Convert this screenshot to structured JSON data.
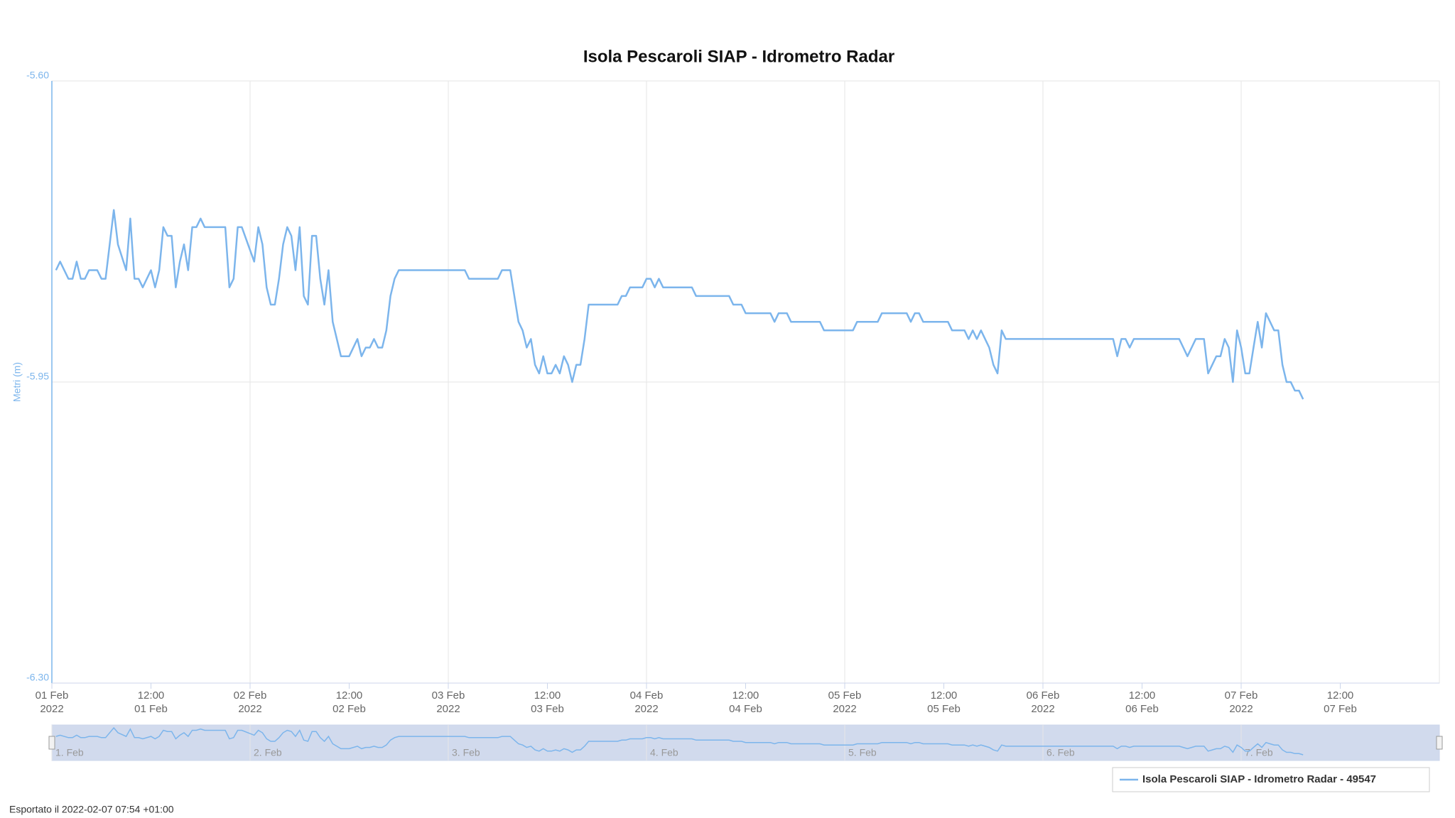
{
  "chart_data": {
    "type": "line",
    "title": "Isola Pescaroli SIAP - Idrometro Radar",
    "y_label": "Metri (m)",
    "footer": "Esportato il 2022-02-07 07:54 +01:00",
    "ylim": [
      -6.3,
      -5.6
    ],
    "yticks": [
      {
        "value": -5.6,
        "label": "-5.60"
      },
      {
        "value": -5.95,
        "label": "-5.95"
      },
      {
        "value": -6.3,
        "label": "-6.30"
      }
    ],
    "xlim": [
      "2022-02-01T00:00",
      "2022-02-08T00:00"
    ],
    "xticks": [
      {
        "value": "2022-02-01T00:00",
        "label": [
          "01 Feb",
          "2022"
        ]
      },
      {
        "value": "2022-02-01T12:00",
        "label": [
          "12:00",
          "01 Feb"
        ]
      },
      {
        "value": "2022-02-02T00:00",
        "label": [
          "02 Feb",
          "2022"
        ]
      },
      {
        "value": "2022-02-02T12:00",
        "label": [
          "12:00",
          "02 Feb"
        ]
      },
      {
        "value": "2022-02-03T00:00",
        "label": [
          "03 Feb",
          "2022"
        ]
      },
      {
        "value": "2022-02-03T12:00",
        "label": [
          "12:00",
          "03 Feb"
        ]
      },
      {
        "value": "2022-02-04T00:00",
        "label": [
          "04 Feb",
          "2022"
        ]
      },
      {
        "value": "2022-02-04T12:00",
        "label": [
          "12:00",
          "04 Feb"
        ]
      },
      {
        "value": "2022-02-05T00:00",
        "label": [
          "05 Feb",
          "2022"
        ]
      },
      {
        "value": "2022-02-05T12:00",
        "label": [
          "12:00",
          "05 Feb"
        ]
      },
      {
        "value": "2022-02-06T00:00",
        "label": [
          "06 Feb",
          "2022"
        ]
      },
      {
        "value": "2022-02-06T12:00",
        "label": [
          "12:00",
          "06 Feb"
        ]
      },
      {
        "value": "2022-02-07T00:00",
        "label": [
          "07 Feb",
          "2022"
        ]
      },
      {
        "value": "2022-02-07T12:00",
        "label": [
          "12:00",
          "07 Feb"
        ]
      }
    ],
    "navigator_xticks": [
      {
        "value": "2022-02-01T00:00",
        "label": "1. Feb"
      },
      {
        "value": "2022-02-02T00:00",
        "label": "2. Feb"
      },
      {
        "value": "2022-02-03T00:00",
        "label": "3. Feb"
      },
      {
        "value": "2022-02-04T00:00",
        "label": "4. Feb"
      },
      {
        "value": "2022-02-05T00:00",
        "label": "5. Feb"
      },
      {
        "value": "2022-02-06T00:00",
        "label": "6. Feb"
      },
      {
        "value": "2022-02-07T00:00",
        "label": "7. Feb"
      }
    ],
    "grid": true,
    "x": [
      "2022-02-01T00:30",
      "2022-02-01T01:00",
      "2022-02-01T02:00",
      "2022-02-01T02:30",
      "2022-02-01T03:00",
      "2022-02-01T03:30",
      "2022-02-01T04:00",
      "2022-02-01T04:30",
      "2022-02-01T05:30",
      "2022-02-01T06:00",
      "2022-02-01T06:30",
      "2022-02-01T07:30",
      "2022-02-01T08:00",
      "2022-02-01T09:00",
      "2022-02-01T09:30",
      "2022-02-01T10:00",
      "2022-02-01T10:30",
      "2022-02-01T11:00",
      "2022-02-01T12:00",
      "2022-02-01T12:30",
      "2022-02-01T13:00",
      "2022-02-01T13:30",
      "2022-02-01T14:00",
      "2022-02-01T14:30",
      "2022-02-01T15:00",
      "2022-02-01T15:30",
      "2022-02-01T16:00",
      "2022-02-01T16:30",
      "2022-02-01T17:00",
      "2022-02-01T17:30",
      "2022-02-01T18:00",
      "2022-02-01T18:30",
      "2022-02-01T21:00",
      "2022-02-01T21:30",
      "2022-02-01T22:00",
      "2022-02-01T22:30",
      "2022-02-01T23:00",
      "2022-02-02T00:30",
      "2022-02-02T01:00",
      "2022-02-02T01:30",
      "2022-02-02T02:00",
      "2022-02-02T02:30",
      "2022-02-02T03:00",
      "2022-02-02T03:30",
      "2022-02-02T04:00",
      "2022-02-02T04:30",
      "2022-02-02T05:00",
      "2022-02-02T05:30",
      "2022-02-02T06:00",
      "2022-02-02T06:30",
      "2022-02-02T07:00",
      "2022-02-02T07:30",
      "2022-02-02T08:00",
      "2022-02-02T08:30",
      "2022-02-02T09:00",
      "2022-02-02T09:30",
      "2022-02-02T10:00",
      "2022-02-02T10:30",
      "2022-02-02T11:00",
      "2022-02-02T12:00",
      "2022-02-02T13:00",
      "2022-02-02T13:30",
      "2022-02-02T14:00",
      "2022-02-02T14:30",
      "2022-02-02T15:00",
      "2022-02-02T15:30",
      "2022-02-02T16:00",
      "2022-02-02T16:30",
      "2022-02-02T17:00",
      "2022-02-02T17:30",
      "2022-02-02T18:00",
      "2022-02-03T02:00",
      "2022-02-03T02:30",
      "2022-02-03T06:00",
      "2022-02-03T06:30",
      "2022-02-03T07:30",
      "2022-02-03T08:00",
      "2022-02-03T08:30",
      "2022-02-03T09:00",
      "2022-02-03T09:30",
      "2022-02-03T10:00",
      "2022-02-03T10:30",
      "2022-02-03T11:00",
      "2022-02-03T11:30",
      "2022-02-03T12:00",
      "2022-02-03T12:30",
      "2022-02-03T13:00",
      "2022-02-03T13:30",
      "2022-02-03T14:00",
      "2022-02-03T14:30",
      "2022-02-03T15:00",
      "2022-02-03T15:30",
      "2022-02-03T16:00",
      "2022-02-03T16:30",
      "2022-02-03T17:00",
      "2022-02-03T20:30",
      "2022-02-03T21:00",
      "2022-02-03T21:30",
      "2022-02-03T22:00",
      "2022-02-03T23:30",
      "2022-02-04T00:00",
      "2022-02-04T00:30",
      "2022-02-04T01:00",
      "2022-02-04T01:30",
      "2022-02-04T02:00",
      "2022-02-04T05:30",
      "2022-02-04T06:00",
      "2022-02-04T10:00",
      "2022-02-04T10:30",
      "2022-02-04T11:30",
      "2022-02-04T12:00",
      "2022-02-04T15:00",
      "2022-02-04T15:30",
      "2022-02-04T16:00",
      "2022-02-04T17:00",
      "2022-02-04T17:30",
      "2022-02-04T21:00",
      "2022-02-04T21:30",
      "2022-02-05T01:00",
      "2022-02-05T01:30",
      "2022-02-05T04:00",
      "2022-02-05T04:30",
      "2022-02-05T07:30",
      "2022-02-05T08:00",
      "2022-02-05T08:30",
      "2022-02-05T09:00",
      "2022-02-05T09:30",
      "2022-02-05T12:30",
      "2022-02-05T13:00",
      "2022-02-05T14:30",
      "2022-02-05T15:00",
      "2022-02-05T15:30",
      "2022-02-05T16:00",
      "2022-02-05T16:30",
      "2022-02-05T17:00",
      "2022-02-05T17:30",
      "2022-02-05T18:00",
      "2022-02-05T18:30",
      "2022-02-05T19:00",
      "2022-02-05T19:30",
      "2022-02-06T08:30",
      "2022-02-06T09:00",
      "2022-02-06T09:30",
      "2022-02-06T10:00",
      "2022-02-06T10:30",
      "2022-02-06T11:00",
      "2022-02-06T16:30",
      "2022-02-06T17:00",
      "2022-02-06T17:30",
      "2022-02-06T18:00",
      "2022-02-06T18:30",
      "2022-02-06T19:30",
      "2022-02-06T20:00",
      "2022-02-06T20:30",
      "2022-02-06T21:00",
      "2022-02-06T21:30",
      "2022-02-06T22:00",
      "2022-02-06T22:30",
      "2022-02-06T23:00",
      "2022-02-06T23:30",
      "2022-02-07T00:00",
      "2022-02-07T00:30",
      "2022-02-07T01:00",
      "2022-02-07T01:30",
      "2022-02-07T02:00",
      "2022-02-07T02:30",
      "2022-02-07T03:00",
      "2022-02-07T03:30",
      "2022-02-07T04:00",
      "2022-02-07T04:30",
      "2022-02-07T05:00",
      "2022-02-07T05:30",
      "2022-02-07T06:00",
      "2022-02-07T06:30",
      "2022-02-07T07:00",
      "2022-02-07T07:30"
    ],
    "series": [
      {
        "name": "Isola Pescaroli SIAP - Idrometro Radar - 49547",
        "color": "#7cb5ec",
        "values": [
          -5.82,
          -5.81,
          -5.83,
          -5.83,
          -5.81,
          -5.83,
          -5.83,
          -5.82,
          -5.82,
          -5.83,
          -5.83,
          -5.75,
          -5.79,
          -5.82,
          -5.76,
          -5.83,
          -5.83,
          -5.84,
          -5.82,
          -5.84,
          -5.82,
          -5.77,
          -5.78,
          -5.78,
          -5.84,
          -5.81,
          -5.79,
          -5.82,
          -5.77,
          -5.77,
          -5.76,
          -5.77,
          -5.77,
          -5.84,
          -5.83,
          -5.77,
          -5.77,
          -5.81,
          -5.77,
          -5.79,
          -5.84,
          -5.86,
          -5.86,
          -5.83,
          -5.79,
          -5.77,
          -5.78,
          -5.82,
          -5.77,
          -5.85,
          -5.86,
          -5.78,
          -5.78,
          -5.83,
          -5.86,
          -5.82,
          -5.88,
          -5.9,
          -5.92,
          -5.92,
          -5.9,
          -5.92,
          -5.91,
          -5.91,
          -5.9,
          -5.91,
          -5.91,
          -5.89,
          -5.85,
          -5.83,
          -5.82,
          -5.82,
          -5.83,
          -5.83,
          -5.82,
          -5.82,
          -5.85,
          -5.88,
          -5.89,
          -5.91,
          -5.9,
          -5.93,
          -5.94,
          -5.92,
          -5.94,
          -5.94,
          -5.93,
          -5.94,
          -5.92,
          -5.93,
          -5.95,
          -5.93,
          -5.93,
          -5.9,
          -5.86,
          -5.86,
          -5.85,
          -5.85,
          -5.84,
          -5.84,
          -5.83,
          -5.83,
          -5.84,
          -5.83,
          -5.84,
          -5.84,
          -5.85,
          -5.85,
          -5.86,
          -5.86,
          -5.87,
          -5.87,
          -5.88,
          -5.87,
          -5.87,
          -5.88,
          -5.88,
          -5.89,
          -5.89,
          -5.88,
          -5.88,
          -5.87,
          -5.87,
          -5.88,
          -5.87,
          -5.87,
          -5.88,
          -5.88,
          -5.89,
          -5.89,
          -5.9,
          -5.89,
          -5.9,
          -5.89,
          -5.9,
          -5.91,
          -5.93,
          -5.94,
          -5.89,
          -5.9,
          -5.9,
          -5.92,
          -5.9,
          -5.9,
          -5.91,
          -5.9,
          -5.9,
          -5.91,
          -5.92,
          -5.91,
          -5.9,
          -5.9,
          -5.94,
          -5.93,
          -5.92,
          -5.92,
          -5.9,
          -5.91,
          -5.95,
          -5.89,
          -5.91,
          -5.94,
          -5.94,
          -5.91,
          -5.88,
          -5.91,
          -5.87,
          -5.88,
          -5.89,
          -5.89,
          -5.93,
          -5.95,
          -5.95,
          -5.96,
          -5.96,
          -5.97
        ]
      }
    ]
  }
}
